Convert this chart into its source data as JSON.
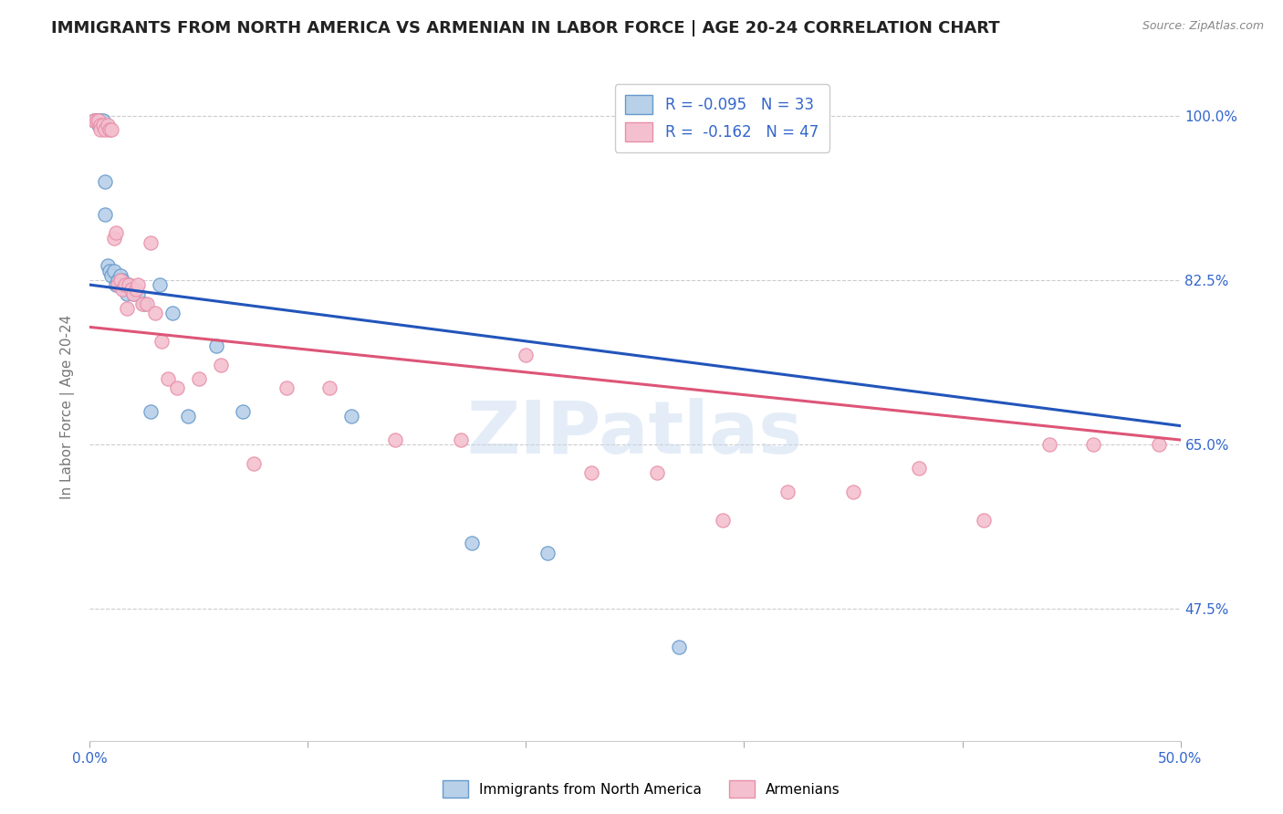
{
  "title": "IMMIGRANTS FROM NORTH AMERICA VS ARMENIAN IN LABOR FORCE | AGE 20-24 CORRELATION CHART",
  "source": "Source: ZipAtlas.com",
  "ylabel": "In Labor Force | Age 20-24",
  "xlim": [
    0.0,
    0.5
  ],
  "ylim": [
    0.335,
    1.045
  ],
  "xtick_vals": [
    0.0,
    0.1,
    0.2,
    0.3,
    0.4,
    0.5
  ],
  "xtick_labels": [
    "0.0%",
    "",
    "",
    "",
    "",
    "50.0%"
  ],
  "ytick_vals_right": [
    0.475,
    0.65,
    0.825,
    1.0
  ],
  "ytick_labels_right": [
    "47.5%",
    "65.0%",
    "82.5%",
    "100.0%"
  ],
  "legend_entry_blue": "R = -0.095   N = 33",
  "legend_entry_pink": "R =  -0.162   N = 47",
  "blue_scatter_x": [
    0.002,
    0.003,
    0.004,
    0.004,
    0.005,
    0.005,
    0.006,
    0.007,
    0.007,
    0.008,
    0.009,
    0.01,
    0.011,
    0.012,
    0.013,
    0.014,
    0.015,
    0.016,
    0.017,
    0.018,
    0.02,
    0.022,
    0.025,
    0.028,
    0.032,
    0.038,
    0.045,
    0.058,
    0.07,
    0.12,
    0.175,
    0.21,
    0.27
  ],
  "blue_scatter_y": [
    0.995,
    0.995,
    0.995,
    0.99,
    0.995,
    0.99,
    0.995,
    0.93,
    0.895,
    0.84,
    0.835,
    0.83,
    0.835,
    0.82,
    0.825,
    0.83,
    0.825,
    0.82,
    0.81,
    0.82,
    0.81,
    0.81,
    0.8,
    0.685,
    0.82,
    0.79,
    0.68,
    0.755,
    0.685,
    0.68,
    0.545,
    0.535,
    0.435
  ],
  "pink_scatter_x": [
    0.002,
    0.003,
    0.004,
    0.005,
    0.005,
    0.006,
    0.007,
    0.008,
    0.009,
    0.01,
    0.011,
    0.012,
    0.013,
    0.014,
    0.015,
    0.016,
    0.017,
    0.018,
    0.019,
    0.02,
    0.021,
    0.022,
    0.024,
    0.026,
    0.028,
    0.03,
    0.033,
    0.036,
    0.04,
    0.05,
    0.06,
    0.075,
    0.09,
    0.11,
    0.14,
    0.17,
    0.2,
    0.23,
    0.26,
    0.29,
    0.32,
    0.35,
    0.38,
    0.41,
    0.44,
    0.46,
    0.49
  ],
  "pink_scatter_y": [
    0.995,
    0.995,
    0.995,
    0.99,
    0.985,
    0.99,
    0.985,
    0.99,
    0.985,
    0.985,
    0.87,
    0.875,
    0.82,
    0.825,
    0.815,
    0.82,
    0.795,
    0.82,
    0.815,
    0.81,
    0.815,
    0.82,
    0.8,
    0.8,
    0.865,
    0.79,
    0.76,
    0.72,
    0.71,
    0.72,
    0.735,
    0.63,
    0.71,
    0.71,
    0.655,
    0.655,
    0.745,
    0.62,
    0.62,
    0.57,
    0.6,
    0.6,
    0.625,
    0.57,
    0.65,
    0.65,
    0.65
  ],
  "blue_line_x": [
    0.0,
    0.5
  ],
  "blue_line_y": [
    0.82,
    0.67
  ],
  "pink_line_x": [
    0.0,
    0.5
  ],
  "pink_line_y": [
    0.775,
    0.655
  ],
  "watermark": "ZIPatlas",
  "background_color": "#ffffff",
  "scatter_size": 120,
  "blue_fill": "#b8d0e8",
  "blue_edge": "#6699cc",
  "pink_fill": "#f4c0d0",
  "pink_edge": "#e890a8",
  "blue_line_color": "#2255bb",
  "pink_line_color": "#dd5577",
  "grid_color": "#cccccc",
  "title_color": "#222222",
  "right_tick_color": "#3366cc",
  "bottom_legend": [
    "Immigrants from North America",
    "Armenians"
  ]
}
